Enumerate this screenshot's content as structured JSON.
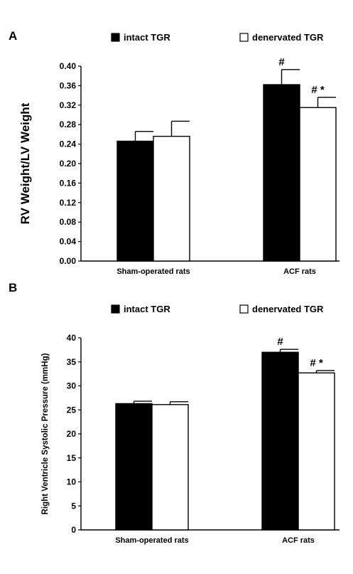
{
  "chart_data": [
    {
      "panel": "A",
      "type": "bar",
      "ylabel": "RV Weight/LV Weight",
      "ylim": [
        0,
        0.4
      ],
      "yticks": [
        "0.00",
        "0.04",
        "0.08",
        "0.12",
        "0.16",
        "0.20",
        "0.24",
        "0.28",
        "0.32",
        "0.36",
        "0.40"
      ],
      "categories": [
        "Sham-operated rats",
        "ACF rats"
      ],
      "legend": {
        "placement": "top",
        "entries": [
          "intact TGR",
          "denervated TGR"
        ]
      },
      "series": [
        {
          "name": "intact TGR",
          "fill": "#000000",
          "values": [
            0.246,
            0.362
          ],
          "errors": [
            0.02,
            0.031
          ],
          "markers": [
            "",
            "#"
          ]
        },
        {
          "name": "denervated TGR",
          "fill": "#ffffff",
          "values": [
            0.256,
            0.315
          ],
          "errors": [
            0.031,
            0.021
          ],
          "markers": [
            "",
            "# *"
          ]
        }
      ]
    },
    {
      "panel": "B",
      "type": "bar",
      "ylabel": "Right Ventricle Systolic Pressure (mmHg)",
      "ylim": [
        0,
        40
      ],
      "yticks": [
        "0",
        "5",
        "10",
        "15",
        "20",
        "25",
        "30",
        "35",
        "40"
      ],
      "categories": [
        "Sham-operated rats",
        "ACF rats"
      ],
      "legend": {
        "placement": "top",
        "entries": [
          "intact TGR",
          "denervated TGR"
        ]
      },
      "series": [
        {
          "name": "intact TGR",
          "fill": "#000000",
          "values": [
            26.3,
            37.0
          ],
          "errors": [
            0.5,
            0.6
          ],
          "markers": [
            "",
            "#"
          ]
        },
        {
          "name": "denervated TGR",
          "fill": "#ffffff",
          "values": [
            26.1,
            32.7
          ],
          "errors": [
            0.6,
            0.5
          ],
          "markers": [
            "",
            "# *"
          ]
        }
      ]
    }
  ]
}
